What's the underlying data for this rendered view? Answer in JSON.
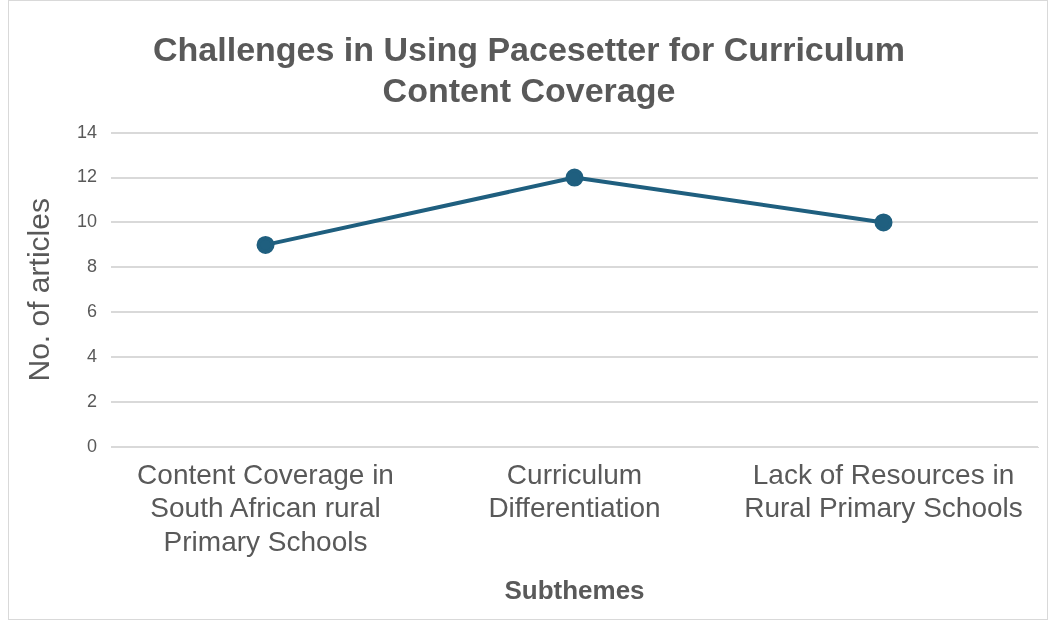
{
  "chart_data": {
    "type": "line",
    "title": "Challenges in Using Pacesetter for Curriculum Content Coverage",
    "xlabel": "Subthemes",
    "ylabel": "No. of articles",
    "categories": [
      "Content Coverage in South African rural Primary Schools",
      "Curriculum Differentiation",
      "Lack of Resources in Rural Primary Schools"
    ],
    "series": [
      {
        "color": "#1f5f7f",
        "values": [
          9,
          12,
          10
        ]
      }
    ],
    "ylim": [
      0,
      14
    ],
    "yticks": [
      0,
      2,
      4,
      6,
      8,
      10,
      12,
      14
    ],
    "grid": "y",
    "legend": false,
    "marker": "circle",
    "line_style": "solid"
  }
}
